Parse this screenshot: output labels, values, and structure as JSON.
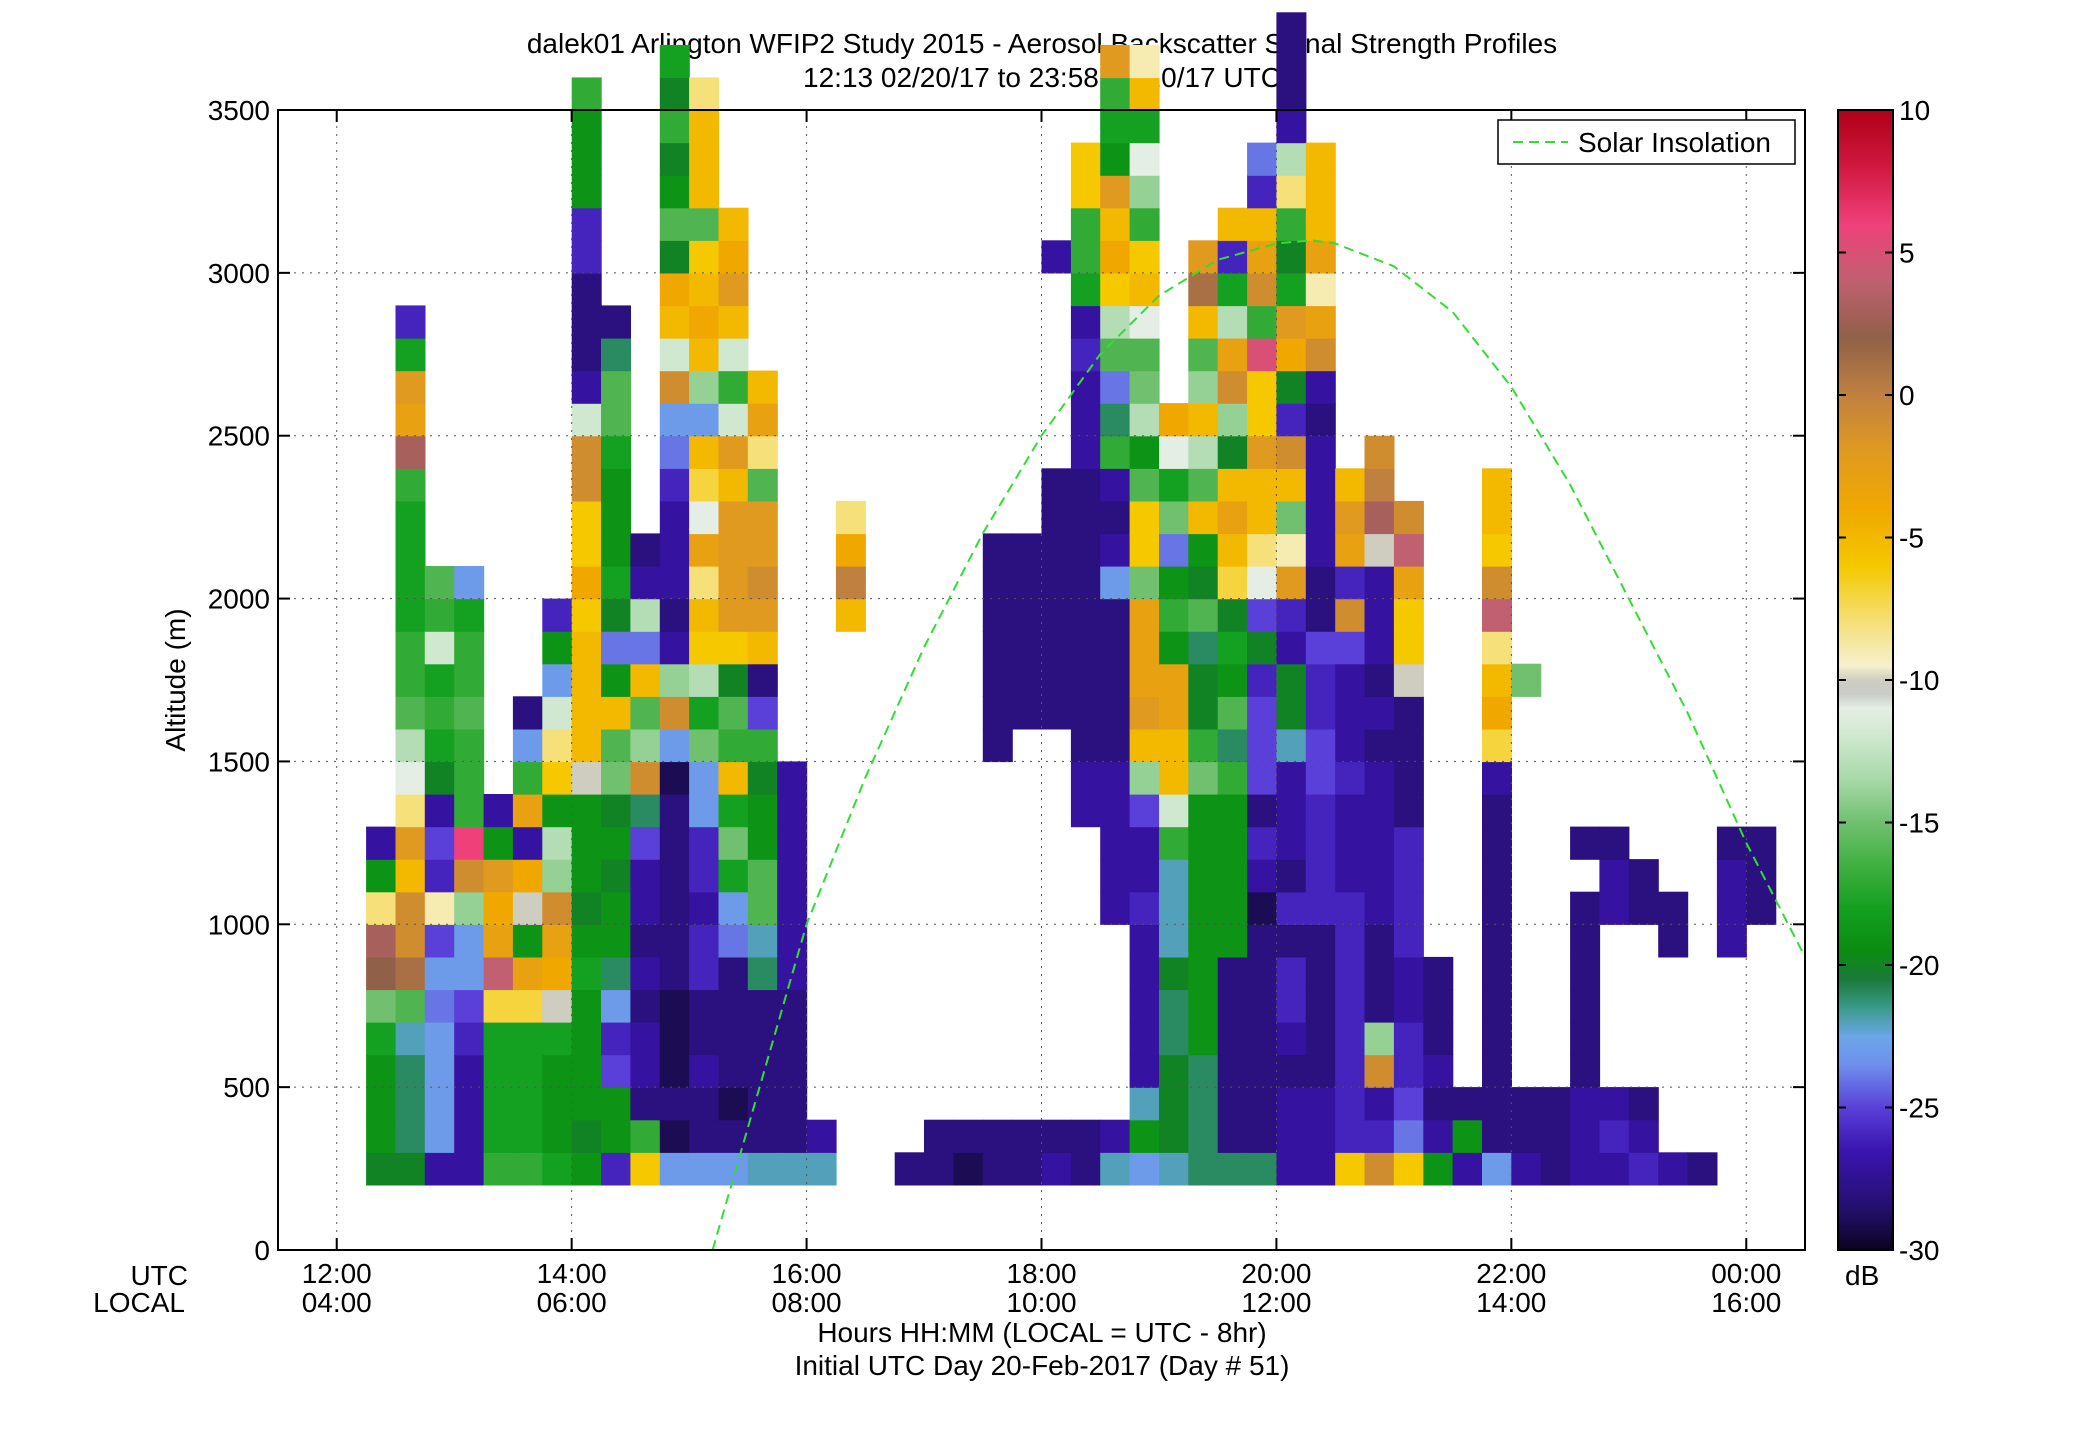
{
  "chart_data": {
    "type": "heatmap",
    "title": "dalek01 Arlington WFIP2 Study 2015 - Aerosol Backscatter Signal Strength Profiles",
    "subtitle": "12:13 02/20/17 to 23:58 02/20/17  UTC",
    "ylabel": "Altitude (m)",
    "xlabel": "Hours HH:MM  (LOCAL = UTC - 8hr)",
    "xlabel2": "Initial UTC Day 20-Feb-2017 (Day # 51)",
    "row_label_utc": "UTC",
    "row_label_local": "LOCAL",
    "colorbar_unit": "dB",
    "xlim_hours_utc": [
      11.5,
      24.5
    ],
    "ylim": [
      0,
      3500
    ],
    "grid": true,
    "x_ticks": [
      {
        "hour": 12,
        "utc": "12:00",
        "local": "04:00"
      },
      {
        "hour": 14,
        "utc": "14:00",
        "local": "06:00"
      },
      {
        "hour": 16,
        "utc": "16:00",
        "local": "08:00"
      },
      {
        "hour": 18,
        "utc": "18:00",
        "local": "10:00"
      },
      {
        "hour": 20,
        "utc": "20:00",
        "local": "12:00"
      },
      {
        "hour": 22,
        "utc": "22:00",
        "local": "14:00"
      },
      {
        "hour": 24,
        "utc": "00:00",
        "local": "16:00"
      }
    ],
    "y_ticks": [
      0,
      500,
      1000,
      1500,
      2000,
      2500,
      3000,
      3500
    ],
    "colorbar_ticks": [
      10,
      5,
      0,
      -5,
      -10,
      -15,
      -20,
      -25,
      -30
    ],
    "colorbar_range": [
      -30,
      10
    ],
    "legend": {
      "label": "Solar Insolation",
      "position": "top-right",
      "color": "#33dd33"
    },
    "cell_width_hours": 0.25,
    "cell_height_m": 100,
    "bottom_altitude_m": 200,
    "columns": [
      {
        "t": 12.25,
        "alt_start": 200,
        "values": [
          -20,
          -19,
          -19,
          -19,
          -18,
          -15,
          2,
          3,
          -8,
          -19,
          -27
        ]
      },
      {
        "t": 12.5,
        "alt_start": 200,
        "values": [
          -20,
          -21,
          -21,
          -21,
          -22,
          -16,
          1,
          -1,
          -1,
          -5,
          -2,
          -8,
          -11,
          -13,
          -16,
          -17,
          -17,
          -18,
          -18,
          -18,
          -18,
          -17,
          3,
          -3,
          -2,
          -18,
          -26
        ]
      },
      {
        "t": 12.75,
        "alt_start": 200,
        "values": [
          -27,
          -23,
          -23,
          -23,
          -23,
          -24,
          -23,
          -25,
          -9,
          -26,
          -25,
          -27,
          -20,
          -18,
          -17,
          -18,
          -12,
          -17,
          -16
        ]
      },
      {
        "t": 13.0,
        "alt_start": 200,
        "values": [
          -27,
          -27,
          -27,
          -27,
          -26,
          -25,
          -23,
          -23,
          -14,
          -1,
          6,
          -17,
          -17,
          -17,
          -16,
          -17,
          -17,
          -18,
          -23
        ]
      },
      {
        "t": 13.25,
        "alt_start": 200,
        "values": [
          -17,
          -18,
          -18,
          -18,
          -18,
          -7,
          4,
          -3,
          -4,
          -2,
          -19,
          -27
        ]
      },
      {
        "t": 13.5,
        "alt_start": 200,
        "values": [
          -17,
          -18,
          -18,
          -18,
          -18,
          -7,
          -3,
          -19,
          -10,
          -4,
          -27,
          -3,
          -17,
          -23,
          -28
        ]
      },
      {
        "t": 13.75,
        "alt_start": 200,
        "values": [
          -18,
          -19,
          -19,
          -19,
          -18,
          -10,
          -4,
          -3,
          -1,
          -14,
          -13,
          -19,
          -6,
          -8,
          -12,
          -23,
          -19,
          -26
        ]
      },
      {
        "t": 14.0,
        "alt_start": 200,
        "values": [
          -19,
          -20,
          -19,
          -19,
          -19,
          -19,
          -18,
          -19,
          -20,
          -19,
          -19,
          -19,
          -10,
          -5,
          -5,
          -5,
          -5,
          -6,
          -4,
          -6,
          -6,
          -1,
          -1,
          -12,
          -27,
          -28,
          -28,
          -28,
          -26,
          -26,
          -19,
          -19,
          -19,
          -17
        ]
      },
      {
        "t": 14.25,
        "alt_start": 200,
        "values": [
          -26,
          -19,
          -19,
          -25,
          -26,
          -23,
          -21,
          -19,
          -19,
          -20,
          -19,
          -20,
          -15,
          -16,
          -5,
          -19,
          -24,
          -20,
          -18,
          -19,
          -19,
          -19,
          -18,
          -16,
          -16,
          -21,
          -28
        ]
      },
      {
        "t": 14.5,
        "alt_start": 200,
        "values": [
          -6,
          -17,
          -28,
          -27,
          -27,
          -28,
          -27,
          -28,
          -27,
          -27,
          -25,
          -21,
          -1,
          -14,
          -16,
          -5,
          -24,
          -13,
          -27,
          -28
        ]
      },
      {
        "t": 14.75,
        "alt_start": 200,
        "values": [
          -23,
          -29,
          -28,
          -29,
          -29,
          -29,
          -28,
          -28,
          -28,
          -28,
          -28,
          -28,
          -29,
          -23,
          -1,
          -14,
          -27,
          -28,
          -27,
          -27,
          -27,
          -26,
          -24,
          -23,
          -1,
          -12,
          -5,
          -4,
          -20,
          -16,
          -19,
          -20,
          -17,
          -20,
          -18
        ]
      },
      {
        "t": 15.0,
        "alt_start": 200,
        "values": [
          -23,
          -28,
          -28,
          -27,
          -28,
          -28,
          -26,
          -26,
          -27,
          -26,
          -26,
          -23,
          -23,
          -15,
          -18,
          -13,
          -6,
          -5,
          -8,
          -3,
          -11,
          -7,
          -5,
          -23,
          -14,
          -5,
          -4,
          -5,
          -6,
          -16,
          -5,
          -5,
          -5,
          -8
        ]
      },
      {
        "t": 15.25,
        "alt_start": 200,
        "values": [
          -23,
          -28,
          -29,
          -28,
          -28,
          -28,
          -28,
          -24,
          -23,
          -18,
          -15,
          -18,
          -5,
          -17,
          -16,
          -20,
          -6,
          -2,
          -2,
          -2,
          -2,
          -5,
          -2,
          -12,
          -17,
          -12,
          -5,
          -2,
          -4,
          -5
        ]
      },
      {
        "t": 15.5,
        "alt_start": 200,
        "values": [
          -22,
          -28,
          -28,
          -28,
          -28,
          -28,
          -21,
          -22,
          -16,
          -16,
          -19,
          -19,
          -20,
          -17,
          -25,
          -28,
          -5,
          -2,
          -1,
          -2,
          -2,
          -16,
          -8,
          -3,
          -5
        ]
      },
      {
        "t": 15.75,
        "alt_start": 200,
        "values": [
          -22,
          -28,
          -28,
          -28,
          -28,
          -28,
          -27,
          -27,
          -27,
          -27,
          -27,
          -27,
          -27
        ]
      },
      {
        "t": 16.0,
        "alt_start": 200,
        "values": [
          -22,
          -27
        ]
      },
      {
        "t": 16.25,
        "alt_start": 1900,
        "values": [
          -5,
          0,
          -4,
          -8
        ]
      },
      {
        "t": 16.75,
        "alt_start": 200,
        "values": [
          -28
        ]
      },
      {
        "t": 17.0,
        "alt_start": 200,
        "values": [
          -28,
          -28
        ]
      },
      {
        "t": 17.25,
        "alt_start": 200,
        "values": [
          -29,
          -28
        ]
      },
      {
        "t": 17.5,
        "alt_start": 200,
        "values": [
          -28,
          -28,
          -200,
          -200,
          -200,
          -200,
          -200,
          -200,
          -200,
          -200,
          -200,
          -200,
          -200,
          -28,
          -28,
          -28,
          -28,
          -28,
          -28,
          -28
        ]
      },
      {
        "t": 17.75,
        "alt_start": 200,
        "values": [
          -28,
          -28,
          -200,
          -200,
          -200,
          -200,
          -200,
          -200,
          -200,
          -200,
          -200,
          -200,
          -200,
          -200,
          -28,
          -28,
          -28,
          -28,
          -28,
          -28
        ]
      },
      {
        "t": 18.0,
        "alt_start": 200,
        "values": [
          -27,
          -28,
          -200,
          -200,
          -200,
          -200,
          -200,
          -200,
          -200,
          -200,
          -200,
          -200,
          -200,
          -200,
          -28,
          -28,
          -28,
          -28,
          -28,
          -28,
          -28,
          -28,
          -200,
          -200,
          -200,
          -200,
          -200,
          -200,
          -27
        ]
      },
      {
        "t": 18.25,
        "alt_start": 200,
        "values": [
          -28,
          -28,
          -200,
          -200,
          -200,
          -200,
          -200,
          -200,
          -200,
          -200,
          -200,
          -27,
          -27,
          -28,
          -28,
          -28,
          -28,
          -28,
          -28,
          -28,
          -28,
          -28,
          -27,
          -27,
          -27,
          -26,
          -27,
          -18,
          -17,
          -17,
          -6,
          -6
        ]
      },
      {
        "t": 18.5,
        "alt_start": 200,
        "values": [
          -22,
          -27,
          -200,
          -200,
          -200,
          -200,
          -200,
          -200,
          -27,
          -27,
          -27,
          -27,
          -27,
          -28,
          -28,
          -28,
          -28,
          -28,
          -23,
          -27,
          -28,
          -27,
          -17,
          -21,
          -24,
          -16,
          -13,
          -6,
          -4,
          -5,
          -2,
          -19,
          -18,
          -17,
          -2
        ]
      },
      {
        "t": 18.75,
        "alt_start": 200,
        "values": [
          -23,
          -19,
          -22,
          -27,
          -27,
          -27,
          -27,
          -27,
          -26,
          -27,
          -27,
          -25,
          -14,
          -5,
          -2,
          -3,
          -3,
          -3,
          -15,
          -6,
          -6,
          -16,
          -19,
          -13,
          -15,
          -16,
          -11,
          -5,
          -6,
          -17,
          -14,
          -11,
          -18,
          -5,
          -9
        ]
      },
      {
        "t": 19.0,
        "alt_start": 200,
        "values": [
          -22,
          -20,
          -20,
          -20,
          -21,
          -21,
          -20,
          -22,
          -22,
          -22,
          -17,
          -12,
          -5,
          -5,
          -3,
          -3,
          -19,
          -17,
          -19,
          -24,
          -15,
          -18,
          -11,
          -4
        ]
      },
      {
        "t": 19.25,
        "alt_start": 200,
        "values": [
          -21,
          -21,
          -21,
          -21,
          -19,
          -19,
          -19,
          -19,
          -19,
          -19,
          -19,
          -19,
          -15,
          -17,
          -20,
          -20,
          -21,
          -16,
          -20,
          -19,
          -5,
          -16,
          -13,
          -5,
          -14,
          -16,
          -5,
          1,
          -2
        ]
      },
      {
        "t": 19.5,
        "alt_start": 200,
        "values": [
          -21,
          -28,
          -28,
          -28,
          -28,
          -28,
          -28,
          -19,
          -19,
          -19,
          -19,
          -19,
          -17,
          -21,
          -16,
          -19,
          -18,
          -20,
          -7,
          -5,
          -3,
          -5,
          -20,
          -14,
          -1,
          -3,
          -13,
          -18,
          -26,
          -5
        ]
      },
      {
        "t": 19.75,
        "alt_start": 200,
        "values": [
          -21,
          -28,
          -28,
          -28,
          -28,
          -28,
          -28,
          -28,
          -29,
          -27,
          -26,
          -28,
          -25,
          -25,
          -25,
          -26,
          -20,
          -25,
          -11,
          -8,
          -5,
          -5,
          -2,
          -6,
          -6,
          5,
          -17,
          -1,
          -3,
          -5,
          -26,
          -24
        ]
      },
      {
        "t": 20.0,
        "alt_start": 200,
        "values": [
          -27,
          -27,
          -27,
          -28,
          -27,
          -26,
          -26,
          -28,
          -26,
          -28,
          -27,
          -27,
          -27,
          -22,
          -20,
          -20,
          -27,
          -26,
          -2,
          -9,
          -15,
          -5,
          -1,
          -26,
          -20,
          -4,
          -2,
          -18,
          -20,
          -17,
          -8,
          -13,
          -27,
          -28,
          -28,
          -28
        ]
      },
      {
        "t": 20.25,
        "alt_start": 200,
        "values": [
          -27,
          -27,
          -27,
          -28,
          -28,
          -28,
          -28,
          -28,
          -26,
          -26,
          -26,
          -26,
          -25,
          -25,
          -26,
          -26,
          -25,
          -28,
          -28,
          -27,
          -27,
          -27,
          -27,
          -28,
          -27,
          -1,
          -3,
          -9,
          -3,
          -5,
          -5,
          -5
        ]
      },
      {
        "t": 20.5,
        "alt_start": 200,
        "values": [
          -6,
          -26,
          -26,
          -26,
          -26,
          -26,
          -26,
          -26,
          -26,
          -27,
          -27,
          -27,
          -26,
          -27,
          -27,
          -27,
          -25,
          -1,
          -26,
          -3,
          -2,
          -5
        ]
      },
      {
        "t": 20.75,
        "alt_start": 200,
        "values": [
          -1,
          -26,
          -27,
          -1,
          -14,
          -28,
          -28,
          -28,
          -27,
          -27,
          -27,
          -27,
          -27,
          -28,
          -27,
          -28,
          -27,
          -27,
          -27,
          -10,
          3,
          0,
          -1
        ]
      },
      {
        "t": 21.0,
        "alt_start": 200,
        "values": [
          -6,
          -24,
          -25,
          -26,
          -26,
          -27,
          -27,
          -26,
          -26,
          -26,
          -26,
          -28,
          -28,
          -28,
          -28,
          -10,
          -6,
          -6,
          -3,
          4,
          -1
        ]
      },
      {
        "t": 21.25,
        "alt_start": 200,
        "values": [
          -19,
          -27,
          -28,
          -27,
          -28,
          -28,
          -28
        ]
      },
      {
        "t": 21.5,
        "alt_start": 200,
        "values": [
          -27,
          -19,
          -28
        ]
      },
      {
        "t": 21.75,
        "alt_start": 200,
        "values": [
          -23,
          -28,
          -28,
          -28,
          -28,
          -28,
          -28,
          -28,
          -28,
          -28,
          -28,
          -28,
          -27,
          -7,
          -4,
          -5,
          -8,
          4,
          -1,
          -6,
          -5,
          -5
        ]
      },
      {
        "t": 22.0,
        "alt_start": 200,
        "values": [
          -27,
          -28,
          -28,
          -200,
          -200,
          -200,
          -200,
          -200,
          -200,
          -200,
          -200,
          -200,
          -200,
          -200,
          -200,
          -15
        ]
      },
      {
        "t": 22.25,
        "alt_start": 200,
        "values": [
          -28,
          -28,
          -28
        ]
      },
      {
        "t": 22.5,
        "alt_start": 200,
        "values": [
          -27,
          -27,
          -27,
          -28,
          -28,
          -28,
          -28,
          -28,
          -28,
          -200,
          -28
        ]
      },
      {
        "t": 22.75,
        "alt_start": 200,
        "values": [
          -27,
          -26,
          -27,
          -200,
          -200,
          -200,
          -200,
          -200,
          -27,
          -27,
          -28
        ]
      },
      {
        "t": 23.0,
        "alt_start": 200,
        "values": [
          -26,
          -27,
          -28,
          -200,
          -200,
          -200,
          -200,
          -200,
          -28,
          -28
        ]
      },
      {
        "t": 23.25,
        "alt_start": 200,
        "values": [
          -27,
          -200,
          -200,
          -200,
          -200,
          -200,
          -200,
          -28,
          -28
        ]
      },
      {
        "t": 23.5,
        "alt_start": 200,
        "values": [
          -28
        ]
      },
      {
        "t": 23.75,
        "alt_start": 900,
        "values": [
          -27,
          -27,
          -27,
          -28
        ]
      },
      {
        "t": 24.0,
        "alt_start": 1000,
        "values": [
          -28,
          -28,
          -28
        ]
      }
    ],
    "solar_insolation_curve": {
      "hours": [
        15.2,
        15.6,
        16.0,
        16.5,
        17.0,
        17.5,
        18.0,
        18.5,
        19.0,
        19.5,
        20.0,
        20.3,
        20.5,
        21.0,
        21.5,
        22.0,
        22.5,
        23.0,
        23.5,
        24.0,
        24.5
      ],
      "altitude_m": [
        0,
        500,
        1000,
        1450,
        1850,
        2200,
        2500,
        2750,
        2930,
        3040,
        3090,
        3100,
        3090,
        3020,
        2880,
        2650,
        2350,
        2000,
        1650,
        1250,
        900
      ]
    }
  }
}
